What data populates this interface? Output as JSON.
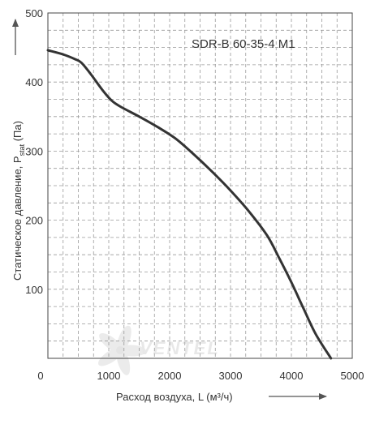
{
  "chart_data": {
    "type": "line",
    "title": "SDR-B 60-35-4 M1",
    "xlabel": "Расход воздуха, L (м³/ч)",
    "ylabel_main": "Статическое давление, P",
    "ylabel_sub": "stat",
    "ylabel_unit": " (Па)",
    "xlim": [
      0,
      5000
    ],
    "ylim": [
      0,
      500
    ],
    "x_ticks": [
      0,
      1000,
      2000,
      3000,
      4000,
      5000
    ],
    "x_tick_labels": [
      "0",
      "1000",
      "2000",
      "3000",
      "4000",
      "5000"
    ],
    "y_ticks": [
      100,
      200,
      300,
      400,
      500
    ],
    "y_tick_labels": [
      "100",
      "200",
      "300",
      "400",
      "500"
    ],
    "grid": true,
    "line_color": "#333333",
    "series": [
      {
        "x": [
          0,
          250,
          450,
          550,
          700,
          900,
          1050,
          1200,
          1500,
          1800,
          2100,
          2400,
          2700,
          3000,
          3300,
          3600,
          3800,
          4000,
          4200,
          4400,
          4650
        ],
        "y": [
          446,
          440,
          433,
          428,
          412,
          388,
          373,
          364,
          350,
          335,
          318,
          295,
          270,
          243,
          213,
          178,
          145,
          110,
          72,
          35,
          0
        ]
      }
    ]
  },
  "watermark": {
    "brand": "VENTEL"
  }
}
